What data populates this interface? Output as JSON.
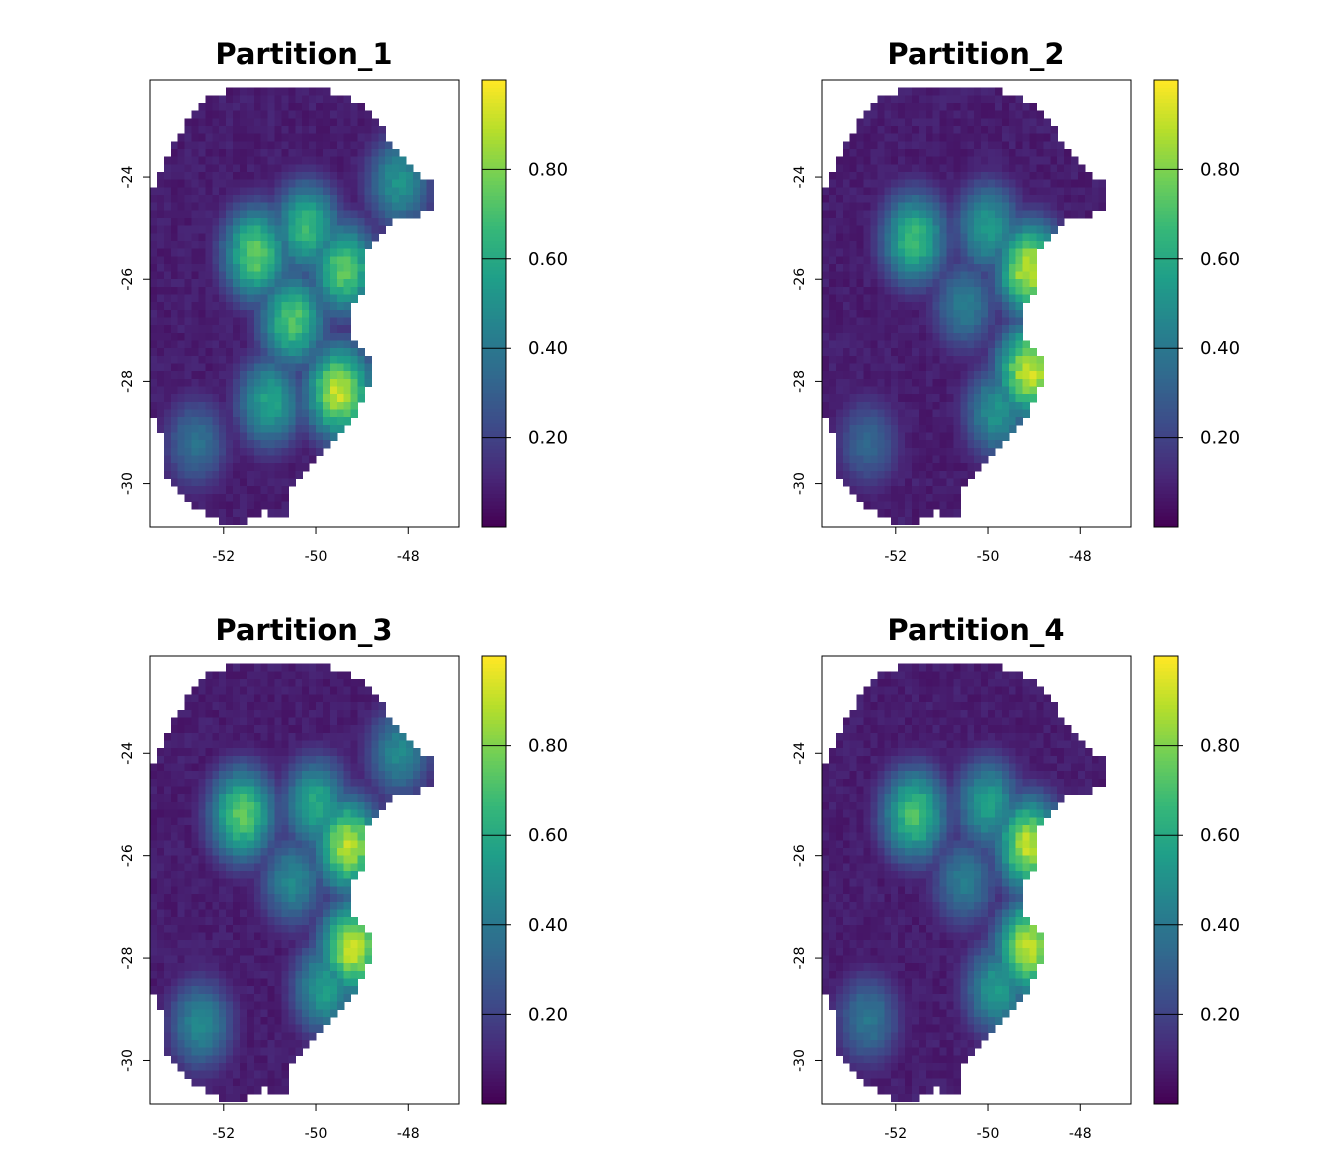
{
  "chart_data": [
    {
      "type": "heatmap",
      "title": "Partition_1",
      "xlabel": "",
      "ylabel": "",
      "xlim": [
        -53.6,
        -46.9
      ],
      "ylim": [
        -30.85,
        -22.1
      ],
      "x_ticks": [
        -52,
        -50,
        -48
      ],
      "y_ticks": [
        -24,
        -26,
        -28,
        -30
      ],
      "colorbar": {
        "min": 0.0,
        "max": 1.0,
        "ticks": [
          0.2,
          0.4,
          0.6,
          0.8
        ],
        "tick_labels": [
          "0.20",
          "0.40",
          "0.60",
          "0.80"
        ],
        "palette": "viridis"
      },
      "hotspots": [
        {
          "x": -49.5,
          "y": -28.2,
          "value": 0.97
        },
        {
          "x": -51.3,
          "y": -25.5,
          "value": 0.82
        },
        {
          "x": -49.4,
          "y": -25.8,
          "value": 0.8
        },
        {
          "x": -50.5,
          "y": -26.8,
          "value": 0.78
        },
        {
          "x": -50.2,
          "y": -25.0,
          "value": 0.72
        },
        {
          "x": -48.2,
          "y": -24.1,
          "value": 0.55
        },
        {
          "x": -51.0,
          "y": -28.4,
          "value": 0.62
        },
        {
          "x": -52.6,
          "y": -29.2,
          "value": 0.4
        }
      ]
    },
    {
      "type": "heatmap",
      "title": "Partition_2",
      "xlabel": "",
      "ylabel": "",
      "xlim": [
        -53.6,
        -46.9
      ],
      "ylim": [
        -30.85,
        -22.1
      ],
      "x_ticks": [
        -52,
        -50,
        -48
      ],
      "y_ticks": [
        -24,
        -26,
        -28,
        -30
      ],
      "colorbar": {
        "min": 0.0,
        "max": 1.0,
        "ticks": [
          0.2,
          0.4,
          0.6,
          0.8
        ],
        "tick_labels": [
          "0.20",
          "0.40",
          "0.60",
          "0.80"
        ],
        "palette": "viridis"
      },
      "hotspots": [
        {
          "x": -49.1,
          "y": -27.8,
          "value": 0.98
        },
        {
          "x": -49.1,
          "y": -25.8,
          "value": 0.97
        },
        {
          "x": -51.6,
          "y": -25.2,
          "value": 0.72
        },
        {
          "x": -50.0,
          "y": -25.0,
          "value": 0.58
        },
        {
          "x": -50.5,
          "y": -26.5,
          "value": 0.45
        },
        {
          "x": -49.8,
          "y": -28.6,
          "value": 0.55
        },
        {
          "x": -52.6,
          "y": -29.2,
          "value": 0.35
        }
      ]
    },
    {
      "type": "heatmap",
      "title": "Partition_3",
      "xlabel": "",
      "ylabel": "",
      "xlim": [
        -53.6,
        -46.9
      ],
      "ylim": [
        -30.85,
        -22.1
      ],
      "x_ticks": [
        -52,
        -50,
        -48
      ],
      "y_ticks": [
        -24,
        -26,
        -28,
        -30
      ],
      "colorbar": {
        "min": 0.0,
        "max": 1.0,
        "ticks": [
          0.2,
          0.4,
          0.6,
          0.8
        ],
        "tick_labels": [
          "0.20",
          "0.40",
          "0.60",
          "0.80"
        ],
        "palette": "viridis"
      },
      "hotspots": [
        {
          "x": -49.2,
          "y": -27.8,
          "value": 0.98
        },
        {
          "x": -49.3,
          "y": -25.8,
          "value": 0.95
        },
        {
          "x": -51.6,
          "y": -25.2,
          "value": 0.8
        },
        {
          "x": -50.0,
          "y": -25.0,
          "value": 0.65
        },
        {
          "x": -50.5,
          "y": -26.5,
          "value": 0.5
        },
        {
          "x": -49.8,
          "y": -28.6,
          "value": 0.6
        },
        {
          "x": -48.2,
          "y": -24.0,
          "value": 0.5
        },
        {
          "x": -52.5,
          "y": -29.3,
          "value": 0.5
        }
      ]
    },
    {
      "type": "heatmap",
      "title": "Partition_4",
      "xlabel": "",
      "ylabel": "",
      "xlim": [
        -53.6,
        -46.9
      ],
      "ylim": [
        -30.85,
        -22.1
      ],
      "x_ticks": [
        -52,
        -50,
        -48
      ],
      "y_ticks": [
        -24,
        -26,
        -28,
        -30
      ],
      "colorbar": {
        "min": 0.0,
        "max": 1.0,
        "ticks": [
          0.2,
          0.4,
          0.6,
          0.8
        ],
        "tick_labels": [
          "0.20",
          "0.40",
          "0.60",
          "0.80"
        ],
        "palette": "viridis"
      },
      "hotspots": [
        {
          "x": -49.1,
          "y": -27.8,
          "value": 0.98
        },
        {
          "x": -49.1,
          "y": -25.8,
          "value": 0.96
        },
        {
          "x": -51.6,
          "y": -25.2,
          "value": 0.75
        },
        {
          "x": -50.0,
          "y": -25.0,
          "value": 0.6
        },
        {
          "x": -50.5,
          "y": -26.5,
          "value": 0.45
        },
        {
          "x": -49.8,
          "y": -28.6,
          "value": 0.58
        },
        {
          "x": -52.6,
          "y": -29.2,
          "value": 0.42
        }
      ]
    }
  ],
  "colors": {
    "viridis": [
      "#440154",
      "#482878",
      "#3e4a89",
      "#31688e",
      "#26828e",
      "#1f9e89",
      "#35b779",
      "#6ece58",
      "#b5de2b",
      "#fde725"
    ],
    "axis": "#000000",
    "background": "#ffffff"
  }
}
